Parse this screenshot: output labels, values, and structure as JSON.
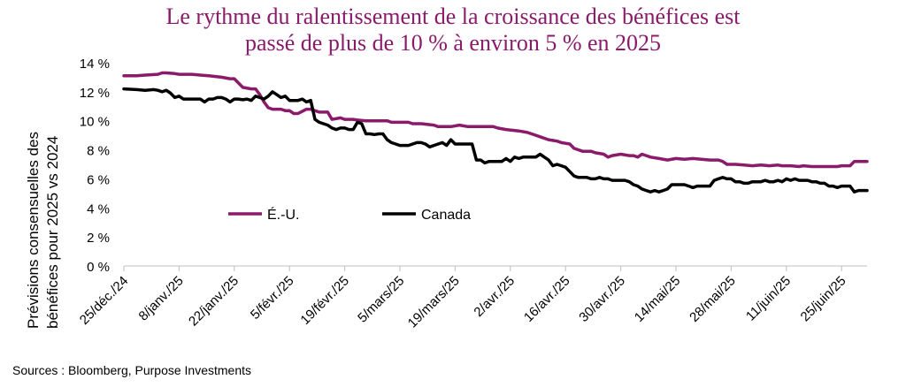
{
  "title_line1": "Le rythme du ralentissement de la croissance des bénéfices est",
  "title_line2": "passé de plus de 10 % à environ 5 % en 2025",
  "source": "Sources : Bloomberg, Purpose Investments",
  "chart_data": {
    "type": "line",
    "ylabel_line1": "Prévisions consensuelles des",
    "ylabel_line2": "bénéfices pour 2025 vs 2024",
    "ylim": [
      0,
      14
    ],
    "yticks": [
      "0 %",
      "2 %",
      "4 %",
      "6 %",
      "8 %",
      "10 %",
      "12 %",
      "14 %"
    ],
    "xticks": [
      "25/déc./24",
      "8/janv./25",
      "22/janv./25",
      "5/févr./25",
      "19/févr./25",
      "5/mars/25",
      "19/mars/25",
      "2/avr./25",
      "16/avr./25",
      "30/avr./25",
      "14/mai/25",
      "28/mai/25",
      "11/juin/25",
      "25/juin/25"
    ],
    "legend_position": "inside-lower-left",
    "series": [
      {
        "name": "É.-U.",
        "color": "#8b1a6b",
        "points": [
          [
            0,
            13.1
          ],
          [
            3,
            13.1
          ],
          [
            5,
            13.15
          ],
          [
            8,
            13.2
          ],
          [
            9,
            13.3
          ],
          [
            10,
            13.3
          ],
          [
            12,
            13.25
          ],
          [
            13,
            13.2
          ],
          [
            15,
            13.2
          ],
          [
            16,
            13.2
          ],
          [
            18,
            13.15
          ],
          [
            20,
            13.1
          ],
          [
            23,
            13.0
          ],
          [
            25,
            12.9
          ],
          [
            26,
            12.9
          ],
          [
            27,
            12.6
          ],
          [
            28,
            12.3
          ],
          [
            30,
            12.2
          ],
          [
            31,
            12.2
          ],
          [
            32,
            11.8
          ],
          [
            33,
            11.3
          ],
          [
            34,
            10.9
          ],
          [
            35,
            10.8
          ],
          [
            36,
            10.8
          ],
          [
            37,
            10.8
          ],
          [
            38,
            10.7
          ],
          [
            39,
            10.7
          ],
          [
            40,
            10.5
          ],
          [
            41,
            10.5
          ],
          [
            43,
            10.8
          ],
          [
            44,
            10.8
          ],
          [
            46,
            10.6
          ],
          [
            48,
            10.6
          ],
          [
            49,
            10.1
          ],
          [
            51,
            10.2
          ],
          [
            52,
            10.1
          ],
          [
            54,
            10.1
          ],
          [
            55,
            10.05
          ],
          [
            57,
            10.0
          ],
          [
            59,
            10.0
          ],
          [
            60,
            10.0
          ],
          [
            62,
            10.0
          ],
          [
            63,
            9.9
          ],
          [
            65,
            9.9
          ],
          [
            67,
            9.9
          ],
          [
            68,
            9.8
          ],
          [
            70,
            9.8
          ],
          [
            73,
            9.7
          ],
          [
            74,
            9.6
          ],
          [
            77,
            9.6
          ],
          [
            79,
            9.7
          ],
          [
            81,
            9.6
          ],
          [
            84,
            9.6
          ],
          [
            87,
            9.6
          ],
          [
            88,
            9.5
          ],
          [
            90,
            9.4
          ],
          [
            93,
            9.3
          ],
          [
            95,
            9.2
          ],
          [
            96,
            9.1
          ],
          [
            97,
            9.0
          ],
          [
            98,
            8.9
          ],
          [
            100,
            8.7
          ],
          [
            102,
            8.6
          ],
          [
            103,
            8.5
          ],
          [
            105,
            8.4
          ],
          [
            106,
            8.1
          ],
          [
            108,
            7.9
          ],
          [
            110,
            7.9
          ],
          [
            111,
            7.8
          ],
          [
            113,
            7.7
          ],
          [
            114,
            7.5
          ],
          [
            115,
            7.6
          ],
          [
            117,
            7.7
          ],
          [
            119,
            7.6
          ],
          [
            120,
            7.6
          ],
          [
            121,
            7.5
          ],
          [
            122,
            7.7
          ],
          [
            123,
            7.6
          ],
          [
            124,
            7.5
          ],
          [
            126,
            7.4
          ],
          [
            128,
            7.3
          ],
          [
            130,
            7.4
          ],
          [
            132,
            7.35
          ],
          [
            134,
            7.4
          ],
          [
            136,
            7.35
          ],
          [
            138,
            7.3
          ],
          [
            140,
            7.3
          ],
          [
            141,
            7.2
          ],
          [
            142,
            7.0
          ],
          [
            144,
            7.0
          ],
          [
            146,
            6.95
          ],
          [
            148,
            6.9
          ],
          [
            150,
            6.95
          ],
          [
            152,
            6.9
          ],
          [
            154,
            6.95
          ],
          [
            155,
            6.9
          ],
          [
            157,
            6.9
          ],
          [
            159,
            6.85
          ],
          [
            160,
            6.9
          ],
          [
            162,
            6.85
          ],
          [
            164,
            6.85
          ],
          [
            166,
            6.85
          ],
          [
            168,
            6.85
          ],
          [
            169,
            6.9
          ],
          [
            171,
            6.9
          ],
          [
            172,
            7.2
          ],
          [
            174,
            7.2
          ],
          [
            175,
            7.2
          ]
        ]
      },
      {
        "name": "Canada",
        "color": "#000000",
        "points": [
          [
            0,
            12.2
          ],
          [
            3,
            12.15
          ],
          [
            5,
            12.1
          ],
          [
            7,
            12.15
          ],
          [
            8,
            12.1
          ],
          [
            9,
            12.0
          ],
          [
            10,
            12.1
          ],
          [
            11,
            11.9
          ],
          [
            12,
            11.6
          ],
          [
            13,
            11.7
          ],
          [
            14,
            11.5
          ],
          [
            15,
            11.5
          ],
          [
            17,
            11.5
          ],
          [
            18,
            11.5
          ],
          [
            19,
            11.3
          ],
          [
            20,
            11.5
          ],
          [
            21,
            11.5
          ],
          [
            22,
            11.6
          ],
          [
            23,
            11.6
          ],
          [
            24,
            11.5
          ],
          [
            25,
            11.3
          ],
          [
            26,
            11.5
          ],
          [
            27,
            11.5
          ],
          [
            28,
            11.45
          ],
          [
            29,
            11.5
          ],
          [
            30,
            11.4
          ],
          [
            31,
            11.7
          ],
          [
            32,
            11.6
          ],
          [
            33,
            11.5
          ],
          [
            34,
            11.7
          ],
          [
            35,
            12.0
          ],
          [
            36,
            11.8
          ],
          [
            37,
            11.6
          ],
          [
            38,
            11.7
          ],
          [
            39,
            11.4
          ],
          [
            40,
            11.4
          ],
          [
            41,
            11.4
          ],
          [
            42,
            11.5
          ],
          [
            43,
            11.3
          ],
          [
            44,
            11.4
          ],
          [
            45,
            10.1
          ],
          [
            46,
            9.9
          ],
          [
            47,
            9.8
          ],
          [
            48,
            9.7
          ],
          [
            49,
            9.5
          ],
          [
            50,
            9.4
          ],
          [
            51,
            9.5
          ],
          [
            52,
            9.5
          ],
          [
            53,
            9.4
          ],
          [
            54,
            9.4
          ],
          [
            55,
            9.9
          ],
          [
            56,
            9.8
          ],
          [
            57,
            9.1
          ],
          [
            58,
            9.1
          ],
          [
            59,
            9.05
          ],
          [
            60,
            9.1
          ],
          [
            61,
            9.1
          ],
          [
            62,
            8.7
          ],
          [
            63,
            8.5
          ],
          [
            64,
            8.4
          ],
          [
            65,
            8.3
          ],
          [
            66,
            8.3
          ],
          [
            67,
            8.3
          ],
          [
            68,
            8.4
          ],
          [
            69,
            8.5
          ],
          [
            70,
            8.5
          ],
          [
            71,
            8.4
          ],
          [
            72,
            8.2
          ],
          [
            73,
            8.3
          ],
          [
            74,
            8.4
          ],
          [
            75,
            8.5
          ],
          [
            76,
            8.3
          ],
          [
            77,
            8.7
          ],
          [
            78,
            8.4
          ],
          [
            79,
            8.4
          ],
          [
            80,
            8.4
          ],
          [
            81,
            8.4
          ],
          [
            82,
            8.4
          ],
          [
            83,
            7.3
          ],
          [
            84,
            7.3
          ],
          [
            85,
            7.1
          ],
          [
            86,
            7.2
          ],
          [
            87,
            7.2
          ],
          [
            88,
            7.2
          ],
          [
            89,
            7.2
          ],
          [
            90,
            7.4
          ],
          [
            91,
            7.2
          ],
          [
            92,
            7.5
          ],
          [
            93,
            7.4
          ],
          [
            94,
            7.5
          ],
          [
            95,
            7.5
          ],
          [
            96,
            7.5
          ],
          [
            97,
            7.5
          ],
          [
            98,
            7.7
          ],
          [
            99,
            7.5
          ],
          [
            100,
            7.3
          ],
          [
            101,
            6.9
          ],
          [
            102,
            7.0
          ],
          [
            103,
            6.9
          ],
          [
            104,
            6.8
          ],
          [
            105,
            6.5
          ],
          [
            106,
            6.2
          ],
          [
            107,
            6.1
          ],
          [
            108,
            6.1
          ],
          [
            109,
            6.1
          ],
          [
            110,
            6.0
          ],
          [
            111,
            6.0
          ],
          [
            112,
            6.1
          ],
          [
            113,
            6.0
          ],
          [
            114,
            6.0
          ],
          [
            115,
            5.9
          ],
          [
            116,
            5.9
          ],
          [
            117,
            5.9
          ],
          [
            118,
            5.9
          ],
          [
            119,
            5.8
          ],
          [
            120,
            5.6
          ],
          [
            121,
            5.5
          ],
          [
            122,
            5.3
          ],
          [
            123,
            5.2
          ],
          [
            124,
            5.1
          ],
          [
            125,
            5.2
          ],
          [
            126,
            5.1
          ],
          [
            127,
            5.2
          ],
          [
            128,
            5.3
          ],
          [
            129,
            5.6
          ],
          [
            130,
            5.6
          ],
          [
            131,
            5.6
          ],
          [
            132,
            5.6
          ],
          [
            133,
            5.5
          ],
          [
            134,
            5.4
          ],
          [
            135,
            5.5
          ],
          [
            136,
            5.5
          ],
          [
            137,
            5.5
          ],
          [
            138,
            5.5
          ],
          [
            139,
            5.9
          ],
          [
            140,
            6.0
          ],
          [
            141,
            6.1
          ],
          [
            142,
            6.0
          ],
          [
            143,
            6.0
          ],
          [
            144,
            5.8
          ],
          [
            145,
            5.8
          ],
          [
            146,
            5.7
          ],
          [
            147,
            5.7
          ],
          [
            148,
            5.8
          ],
          [
            149,
            5.8
          ],
          [
            150,
            5.8
          ],
          [
            151,
            5.9
          ],
          [
            152,
            5.8
          ],
          [
            153,
            5.8
          ],
          [
            154,
            5.9
          ],
          [
            155,
            5.8
          ],
          [
            156,
            6.0
          ],
          [
            157,
            5.9
          ],
          [
            158,
            6.0
          ],
          [
            159,
            5.9
          ],
          [
            160,
            5.9
          ],
          [
            161,
            5.9
          ],
          [
            162,
            5.8
          ],
          [
            163,
            5.8
          ],
          [
            164,
            5.7
          ],
          [
            165,
            5.7
          ],
          [
            166,
            5.5
          ],
          [
            167,
            5.5
          ],
          [
            168,
            5.4
          ],
          [
            169,
            5.5
          ],
          [
            170,
            5.5
          ],
          [
            171,
            5.5
          ],
          [
            172,
            5.1
          ],
          [
            173,
            5.2
          ],
          [
            174,
            5.2
          ],
          [
            175,
            5.2
          ]
        ]
      }
    ]
  }
}
